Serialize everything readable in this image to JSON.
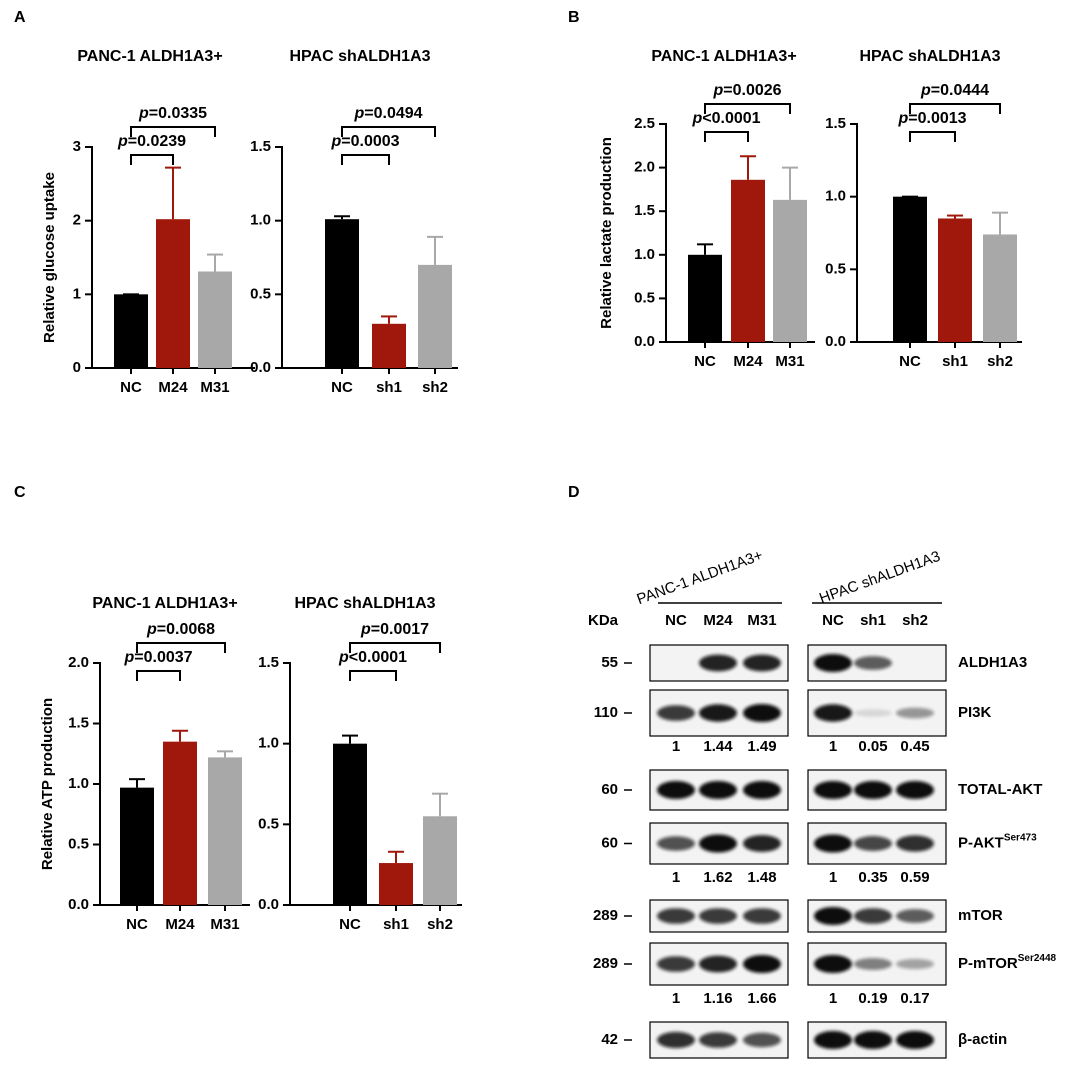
{
  "panel_labels": [
    "A",
    "B",
    "C",
    "D"
  ],
  "chart_data": [
    {
      "type": "bar",
      "title": "PANC-1 ALDH1A3+",
      "ylabel": "Relative glucose uptake",
      "categories": [
        "NC",
        "M24",
        "M31"
      ],
      "values": [
        1.0,
        2.02,
        1.31
      ],
      "errors": [
        0,
        0.7,
        0.23
      ],
      "colors": [
        "#000000",
        "#a0170c",
        "#a8a8a8"
      ],
      "ylim": [
        0,
        3
      ],
      "yticks": [
        0,
        1,
        2,
        3
      ],
      "annotations": [
        {
          "text": "p=0.0239",
          "between": [
            "NC",
            "M24"
          ]
        },
        {
          "text": "p=0.0335",
          "between": [
            "NC",
            "M31"
          ]
        }
      ]
    },
    {
      "type": "bar",
      "title": "HPAC shALDH1A3",
      "categories": [
        "NC",
        "sh1",
        "sh2"
      ],
      "values": [
        1.01,
        0.3,
        0.7
      ],
      "errors": [
        0.02,
        0.05,
        0.19
      ],
      "colors": [
        "#000000",
        "#a0170c",
        "#a8a8a8"
      ],
      "ylim": [
        0,
        1.5
      ],
      "yticks": [
        {
          "value": 0,
          "label": "0.0"
        },
        0.5,
        {
          "value": 1,
          "label": "1.0"
        },
        1.5
      ],
      "annotations": [
        {
          "text": "p=0.0003",
          "between": [
            "NC",
            "sh1"
          ]
        },
        {
          "text": "p=0.0494",
          "between": [
            "NC",
            "sh2"
          ]
        }
      ]
    },
    {
      "type": "bar",
      "title": "PANC-1 ALDH1A3+",
      "ylabel": "Relative lactate production",
      "categories": [
        "NC",
        "M24",
        "M31"
      ],
      "values": [
        1.0,
        1.86,
        1.63
      ],
      "errors": [
        0.12,
        0.27,
        0.37
      ],
      "colors": [
        "#000000",
        "#a0170c",
        "#a8a8a8"
      ],
      "ylim": [
        0,
        2.5
      ],
      "yticks": [
        {
          "value": 0,
          "label": "0.0"
        },
        0.5,
        {
          "value": 1,
          "label": "1.0"
        },
        1.5,
        {
          "value": 2,
          "label": "2.0"
        },
        2.5
      ],
      "annotations": [
        {
          "text": "p<0.0001",
          "between": [
            "NC",
            "M24"
          ]
        },
        {
          "text": "p=0.0026",
          "between": [
            "NC",
            "M31"
          ]
        }
      ]
    },
    {
      "type": "bar",
      "title": "HPAC shALDH1A3",
      "categories": [
        "NC",
        "sh1",
        "sh2"
      ],
      "values": [
        1.0,
        0.85,
        0.74
      ],
      "errors": [
        0,
        0.02,
        0.15
      ],
      "colors": [
        "#000000",
        "#a0170c",
        "#a8a8a8"
      ],
      "ylim": [
        0,
        1.5
      ],
      "yticks": [
        {
          "value": 0,
          "label": "0.0"
        },
        0.5,
        {
          "value": 1,
          "label": "1.0"
        },
        1.5
      ],
      "annotations": [
        {
          "text": "p=0.0013",
          "between": [
            "NC",
            "sh1"
          ]
        },
        {
          "text": "p=0.0444",
          "between": [
            "NC",
            "sh2"
          ]
        }
      ]
    },
    {
      "type": "bar",
      "title": "PANC-1 ALDH1A3+",
      "ylabel": "Relative ATP production",
      "categories": [
        "NC",
        "M24",
        "M31"
      ],
      "values": [
        0.97,
        1.35,
        1.22
      ],
      "errors": [
        0.07,
        0.09,
        0.05
      ],
      "colors": [
        "#000000",
        "#a0170c",
        "#a8a8a8"
      ],
      "ylim": [
        0,
        2
      ],
      "yticks": [
        {
          "value": 0,
          "label": "0.0"
        },
        0.5,
        {
          "value": 1,
          "label": "1.0"
        },
        1.5,
        {
          "value": 2,
          "label": "2.0"
        }
      ],
      "annotations": [
        {
          "text": "p=0.0037",
          "between": [
            "NC",
            "M24"
          ]
        },
        {
          "text": "p=0.0068",
          "between": [
            "NC",
            "M31"
          ]
        }
      ]
    },
    {
      "type": "bar",
      "title": "HPAC shALDH1A3",
      "categories": [
        "NC",
        "sh1",
        "sh2"
      ],
      "values": [
        1.0,
        0.26,
        0.55
      ],
      "errors": [
        0.05,
        0.07,
        0.14
      ],
      "colors": [
        "#000000",
        "#a0170c",
        "#a8a8a8"
      ],
      "ylim": [
        0,
        1.5
      ],
      "yticks": [
        {
          "value": 0,
          "label": "0.0"
        },
        0.5,
        {
          "value": 1,
          "label": "1.0"
        },
        1.5
      ],
      "annotations": [
        {
          "text": "p<0.0001",
          "between": [
            "NC",
            "sh1"
          ]
        },
        {
          "text": "p=0.0017",
          "between": [
            "NC",
            "sh2"
          ]
        }
      ]
    }
  ],
  "blot": {
    "kda_label": "KDa",
    "groups": [
      {
        "title": "PANC-1 ALDH1A3+",
        "lanes": [
          "NC",
          "M24",
          "M31"
        ]
      },
      {
        "title": "HPAC shALDH1A3",
        "lanes": [
          "NC",
          "sh1",
          "sh2"
        ]
      }
    ],
    "rows": [
      {
        "name": "ALDH1A3",
        "kda": 55
      },
      {
        "name": "PI3K",
        "kda": 110,
        "quant": [
          [
            1,
            1.44,
            1.49
          ],
          [
            1,
            0.05,
            0.45
          ]
        ]
      },
      {
        "name": "TOTAL-AKT",
        "kda": 60
      },
      {
        "name": "P-AKT",
        "sup": "Ser473",
        "kda": 60,
        "quant": [
          [
            1,
            1.62,
            1.48
          ],
          [
            1,
            0.35,
            0.59
          ]
        ]
      },
      {
        "name": "mTOR",
        "kda": 289
      },
      {
        "name": "P-mTOR",
        "sup": "Ser2448",
        "kda": 289,
        "quant": [
          [
            1,
            1.16,
            1.66
          ],
          [
            1,
            0.19,
            0.17
          ]
        ]
      },
      {
        "name": "β-actin",
        "kda": 42
      }
    ]
  }
}
